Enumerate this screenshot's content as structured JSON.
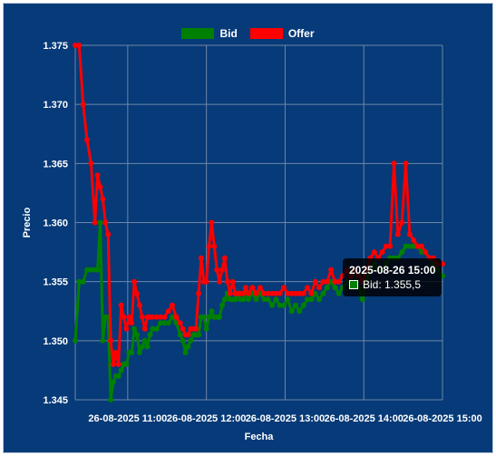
{
  "chart_data": {
    "type": "line",
    "title": "",
    "xlabel": "Fecha",
    "ylabel": "Precio",
    "ylim": [
      1.345,
      1.375
    ],
    "yticks": [
      "1.345",
      "1.350",
      "1.355",
      "1.360",
      "1.365",
      "1.370",
      "1.375"
    ],
    "xlim": [
      "2025-08-26 10:20",
      "2025-08-26 15:00"
    ],
    "xticks": [
      "26-08-2025 11:00",
      "26-08-2025 12:00",
      "26-08-2025 13:00",
      "26-08-2025 14:00",
      "26-08-2025 15:00"
    ],
    "grid": true,
    "legend_position": "top",
    "series": [
      {
        "name": "Bid",
        "color": "#008000",
        "points": [
          [
            "2025-08-26 10:20",
            1.35
          ],
          [
            "2025-08-26 10:23",
            1.355
          ],
          [
            "2025-08-26 10:26",
            1.355
          ],
          [
            "2025-08-26 10:29",
            1.356
          ],
          [
            "2025-08-26 10:32",
            1.356
          ],
          [
            "2025-08-26 10:35",
            1.356
          ],
          [
            "2025-08-26 10:37",
            1.356
          ],
          [
            "2025-08-26 10:39",
            1.36
          ],
          [
            "2025-08-26 10:41",
            1.35
          ],
          [
            "2025-08-26 10:43",
            1.352
          ],
          [
            "2025-08-26 10:45",
            1.352
          ],
          [
            "2025-08-26 10:47",
            1.345
          ],
          [
            "2025-08-26 10:49",
            1.3465
          ],
          [
            "2025-08-26 10:51",
            1.347
          ],
          [
            "2025-08-26 10:53",
            1.347
          ],
          [
            "2025-08-26 10:55",
            1.3475
          ],
          [
            "2025-08-26 10:57",
            1.348
          ],
          [
            "2025-08-26 10:59",
            1.348
          ],
          [
            "2025-08-26 11:01",
            1.349
          ],
          [
            "2025-08-26 11:03",
            1.349
          ],
          [
            "2025-08-26 11:05",
            1.351
          ],
          [
            "2025-08-26 11:07",
            1.3505
          ],
          [
            "2025-08-26 11:09",
            1.349
          ],
          [
            "2025-08-26 11:11",
            1.3495
          ],
          [
            "2025-08-26 11:13",
            1.35
          ],
          [
            "2025-08-26 11:15",
            1.3495
          ],
          [
            "2025-08-26 11:17",
            1.3505
          ],
          [
            "2025-08-26 11:19",
            1.351
          ],
          [
            "2025-08-26 11:22",
            1.351
          ],
          [
            "2025-08-26 11:25",
            1.3515
          ],
          [
            "2025-08-26 11:28",
            1.3515
          ],
          [
            "2025-08-26 11:31",
            1.3515
          ],
          [
            "2025-08-26 11:34",
            1.352
          ],
          [
            "2025-08-26 11:37",
            1.3515
          ],
          [
            "2025-08-26 11:40",
            1.3505
          ],
          [
            "2025-08-26 11:42",
            1.35
          ],
          [
            "2025-08-26 11:44",
            1.349
          ],
          [
            "2025-08-26 11:46",
            1.3495
          ],
          [
            "2025-08-26 11:48",
            1.35
          ],
          [
            "2025-08-26 11:50",
            1.3505
          ],
          [
            "2025-08-26 11:52",
            1.3505
          ],
          [
            "2025-08-26 11:54",
            1.3505
          ],
          [
            "2025-08-26 11:56",
            1.352
          ],
          [
            "2025-08-26 11:58",
            1.352
          ],
          [
            "2025-08-26 12:00",
            1.351
          ],
          [
            "2025-08-26 12:02",
            1.352
          ],
          [
            "2025-08-26 12:04",
            1.3525
          ],
          [
            "2025-08-26 12:06",
            1.352
          ],
          [
            "2025-08-26 12:08",
            1.352
          ],
          [
            "2025-08-26 12:10",
            1.352
          ],
          [
            "2025-08-26 12:12",
            1.353
          ],
          [
            "2025-08-26 12:14",
            1.3535
          ],
          [
            "2025-08-26 12:16",
            1.354
          ],
          [
            "2025-08-26 12:18",
            1.3535
          ],
          [
            "2025-08-26 12:20",
            1.3535
          ],
          [
            "2025-08-26 12:22",
            1.3535
          ],
          [
            "2025-08-26 12:24",
            1.354
          ],
          [
            "2025-08-26 12:26",
            1.3535
          ],
          [
            "2025-08-26 12:28",
            1.3535
          ],
          [
            "2025-08-26 12:30",
            1.354
          ],
          [
            "2025-08-26 12:32",
            1.3535
          ],
          [
            "2025-08-26 12:35",
            1.354
          ],
          [
            "2025-08-26 12:38",
            1.3535
          ],
          [
            "2025-08-26 12:41",
            1.354
          ],
          [
            "2025-08-26 12:44",
            1.3535
          ],
          [
            "2025-08-26 12:47",
            1.3535
          ],
          [
            "2025-08-26 12:50",
            1.353
          ],
          [
            "2025-08-26 12:53",
            1.3535
          ],
          [
            "2025-08-26 12:56",
            1.353
          ],
          [
            "2025-08-26 12:59",
            1.353
          ],
          [
            "2025-08-26 13:02",
            1.3535
          ],
          [
            "2025-08-26 13:05",
            1.3525
          ],
          [
            "2025-08-26 13:08",
            1.353
          ],
          [
            "2025-08-26 13:11",
            1.3525
          ],
          [
            "2025-08-26 13:14",
            1.353
          ],
          [
            "2025-08-26 13:17",
            1.3535
          ],
          [
            "2025-08-26 13:20",
            1.3535
          ],
          [
            "2025-08-26 13:23",
            1.354
          ],
          [
            "2025-08-26 13:26",
            1.3535
          ],
          [
            "2025-08-26 13:29",
            1.354
          ],
          [
            "2025-08-26 13:32",
            1.3545
          ],
          [
            "2025-08-26 13:35",
            1.355
          ],
          [
            "2025-08-26 13:38",
            1.3545
          ],
          [
            "2025-08-26 13:41",
            1.354
          ],
          [
            "2025-08-26 13:44",
            1.3545
          ],
          [
            "2025-08-26 13:47",
            1.355
          ],
          [
            "2025-08-26 13:50",
            1.3545
          ],
          [
            "2025-08-26 13:53",
            1.355
          ],
          [
            "2025-08-26 13:56",
            1.3545
          ],
          [
            "2025-08-26 13:59",
            1.3535
          ],
          [
            "2025-08-26 14:02",
            1.355
          ],
          [
            "2025-08-26 14:05",
            1.356
          ],
          [
            "2025-08-26 14:08",
            1.3565
          ],
          [
            "2025-08-26 14:11",
            1.356
          ],
          [
            "2025-08-26 14:14",
            1.356
          ],
          [
            "2025-08-26 14:17",
            1.3565
          ],
          [
            "2025-08-26 14:20",
            1.357
          ],
          [
            "2025-08-26 14:23",
            1.357
          ],
          [
            "2025-08-26 14:26",
            1.357
          ],
          [
            "2025-08-26 14:29",
            1.3575
          ],
          [
            "2025-08-26 14:32",
            1.358
          ],
          [
            "2025-08-26 14:35",
            1.358
          ],
          [
            "2025-08-26 14:38",
            1.358
          ],
          [
            "2025-08-26 14:41",
            1.358
          ],
          [
            "2025-08-26 14:44",
            1.3575
          ],
          [
            "2025-08-26 14:47",
            1.3575
          ],
          [
            "2025-08-26 14:50",
            1.357
          ],
          [
            "2025-08-26 14:53",
            1.3565
          ],
          [
            "2025-08-26 14:56",
            1.356
          ],
          [
            "2025-08-26 15:00",
            1.3555
          ]
        ]
      },
      {
        "name": "Offer",
        "color": "#ff0000",
        "points": [
          [
            "2025-08-26 10:20",
            1.375
          ],
          [
            "2025-08-26 10:23",
            1.375
          ],
          [
            "2025-08-26 10:26",
            1.37
          ],
          [
            "2025-08-26 10:29",
            1.367
          ],
          [
            "2025-08-26 10:32",
            1.365
          ],
          [
            "2025-08-26 10:35",
            1.36
          ],
          [
            "2025-08-26 10:37",
            1.364
          ],
          [
            "2025-08-26 10:39",
            1.363
          ],
          [
            "2025-08-26 10:41",
            1.362
          ],
          [
            "2025-08-26 10:43",
            1.36
          ],
          [
            "2025-08-26 10:45",
            1.359
          ],
          [
            "2025-08-26 10:47",
            1.35
          ],
          [
            "2025-08-26 10:49",
            1.348
          ],
          [
            "2025-08-26 10:51",
            1.349
          ],
          [
            "2025-08-26 10:53",
            1.348
          ],
          [
            "2025-08-26 10:55",
            1.353
          ],
          [
            "2025-08-26 10:57",
            1.352
          ],
          [
            "2025-08-26 10:59",
            1.351
          ],
          [
            "2025-08-26 11:01",
            1.352
          ],
          [
            "2025-08-26 11:03",
            1.3515
          ],
          [
            "2025-08-26 11:05",
            1.355
          ],
          [
            "2025-08-26 11:07",
            1.354
          ],
          [
            "2025-08-26 11:09",
            1.353
          ],
          [
            "2025-08-26 11:11",
            1.352
          ],
          [
            "2025-08-26 11:13",
            1.351
          ],
          [
            "2025-08-26 11:15",
            1.352
          ],
          [
            "2025-08-26 11:17",
            1.352
          ],
          [
            "2025-08-26 11:19",
            1.352
          ],
          [
            "2025-08-26 11:22",
            1.352
          ],
          [
            "2025-08-26 11:25",
            1.352
          ],
          [
            "2025-08-26 11:28",
            1.352
          ],
          [
            "2025-08-26 11:31",
            1.3525
          ],
          [
            "2025-08-26 11:34",
            1.353
          ],
          [
            "2025-08-26 11:37",
            1.352
          ],
          [
            "2025-08-26 11:40",
            1.3515
          ],
          [
            "2025-08-26 11:42",
            1.351
          ],
          [
            "2025-08-26 11:44",
            1.3505
          ],
          [
            "2025-08-26 11:46",
            1.3505
          ],
          [
            "2025-08-26 11:48",
            1.351
          ],
          [
            "2025-08-26 11:50",
            1.351
          ],
          [
            "2025-08-26 11:52",
            1.351
          ],
          [
            "2025-08-26 11:54",
            1.354
          ],
          [
            "2025-08-26 11:56",
            1.357
          ],
          [
            "2025-08-26 11:58",
            1.355
          ],
          [
            "2025-08-26 12:00",
            1.355
          ],
          [
            "2025-08-26 12:02",
            1.358
          ],
          [
            "2025-08-26 12:04",
            1.36
          ],
          [
            "2025-08-26 12:06",
            1.358
          ],
          [
            "2025-08-26 12:08",
            1.356
          ],
          [
            "2025-08-26 12:10",
            1.355
          ],
          [
            "2025-08-26 12:12",
            1.356
          ],
          [
            "2025-08-26 12:14",
            1.357
          ],
          [
            "2025-08-26 12:16",
            1.355
          ],
          [
            "2025-08-26 12:18",
            1.354
          ],
          [
            "2025-08-26 12:20",
            1.355
          ],
          [
            "2025-08-26 12:22",
            1.354
          ],
          [
            "2025-08-26 12:24",
            1.354
          ],
          [
            "2025-08-26 12:26",
            1.354
          ],
          [
            "2025-08-26 12:28",
            1.354
          ],
          [
            "2025-08-26 12:30",
            1.3545
          ],
          [
            "2025-08-26 12:32",
            1.354
          ],
          [
            "2025-08-26 12:35",
            1.3545
          ],
          [
            "2025-08-26 12:38",
            1.354
          ],
          [
            "2025-08-26 12:41",
            1.3545
          ],
          [
            "2025-08-26 12:44",
            1.354
          ],
          [
            "2025-08-26 12:47",
            1.354
          ],
          [
            "2025-08-26 12:50",
            1.354
          ],
          [
            "2025-08-26 12:53",
            1.354
          ],
          [
            "2025-08-26 12:56",
            1.354
          ],
          [
            "2025-08-26 12:59",
            1.3545
          ],
          [
            "2025-08-26 13:02",
            1.354
          ],
          [
            "2025-08-26 13:05",
            1.354
          ],
          [
            "2025-08-26 13:08",
            1.354
          ],
          [
            "2025-08-26 13:11",
            1.354
          ],
          [
            "2025-08-26 13:14",
            1.354
          ],
          [
            "2025-08-26 13:17",
            1.3545
          ],
          [
            "2025-08-26 13:20",
            1.354
          ],
          [
            "2025-08-26 13:23",
            1.355
          ],
          [
            "2025-08-26 13:26",
            1.3545
          ],
          [
            "2025-08-26 13:29",
            1.355
          ],
          [
            "2025-08-26 13:32",
            1.355
          ],
          [
            "2025-08-26 13:35",
            1.356
          ],
          [
            "2025-08-26 13:38",
            1.355
          ],
          [
            "2025-08-26 13:41",
            1.355
          ],
          [
            "2025-08-26 13:44",
            1.3555
          ],
          [
            "2025-08-26 13:47",
            1.356
          ],
          [
            "2025-08-26 13:50",
            1.3555
          ],
          [
            "2025-08-26 13:53",
            1.356
          ],
          [
            "2025-08-26 13:56",
            1.3555
          ],
          [
            "2025-08-26 13:59",
            1.355
          ],
          [
            "2025-08-26 14:02",
            1.356
          ],
          [
            "2025-08-26 14:05",
            1.357
          ],
          [
            "2025-08-26 14:08",
            1.3575
          ],
          [
            "2025-08-26 14:11",
            1.357
          ],
          [
            "2025-08-26 14:14",
            1.3575
          ],
          [
            "2025-08-26 14:17",
            1.358
          ],
          [
            "2025-08-26 14:20",
            1.358
          ],
          [
            "2025-08-26 14:23",
            1.365
          ],
          [
            "2025-08-26 14:26",
            1.359
          ],
          [
            "2025-08-26 14:29",
            1.36
          ],
          [
            "2025-08-26 14:32",
            1.365
          ],
          [
            "2025-08-26 14:35",
            1.359
          ],
          [
            "2025-08-26 14:38",
            1.3585
          ],
          [
            "2025-08-26 14:41",
            1.358
          ],
          [
            "2025-08-26 14:44",
            1.358
          ],
          [
            "2025-08-26 14:47",
            1.3575
          ],
          [
            "2025-08-26 14:50",
            1.357
          ],
          [
            "2025-08-26 14:53",
            1.357
          ],
          [
            "2025-08-26 14:56",
            1.3565
          ],
          [
            "2025-08-26 15:00",
            1.3565
          ]
        ]
      }
    ],
    "tooltip": {
      "title": "2025-08-26 15:00",
      "label": "Bid: 1.355,5",
      "color": "#008000"
    }
  },
  "colors": {
    "background": "#063a78",
    "grid": "#6f86a8",
    "text": "#ffffff"
  }
}
